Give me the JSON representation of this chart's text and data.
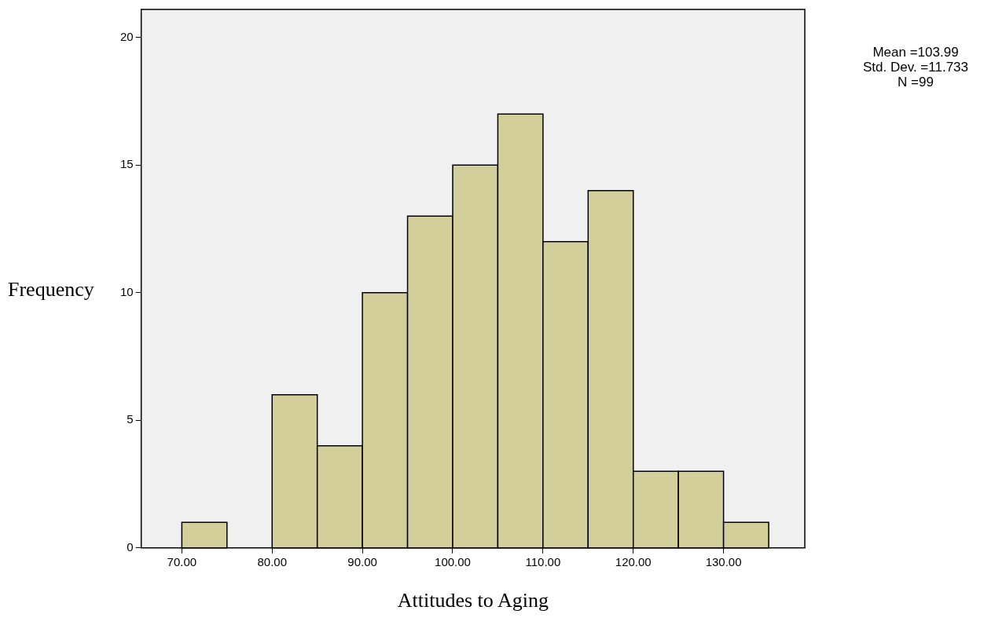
{
  "chart_data": {
    "type": "histogram",
    "xlabel": "Attitudes to Aging",
    "ylabel": "Frequency",
    "bins": [
      70,
      75,
      80,
      85,
      90,
      95,
      100,
      105,
      110,
      115,
      120,
      125,
      130,
      135
    ],
    "values": [
      1,
      0,
      6,
      4,
      10,
      13,
      15,
      17,
      12,
      14,
      3,
      3,
      1
    ],
    "color": "#d3cf9b",
    "xlim": [
      65.5,
      139
    ],
    "ylim": [
      0,
      21.1
    ],
    "xticks": [
      {
        "value": 70,
        "label": "70.00"
      },
      {
        "value": 80,
        "label": "80.00"
      },
      {
        "value": 90,
        "label": "90.00"
      },
      {
        "value": 100,
        "label": "100.00"
      },
      {
        "value": 110,
        "label": "110.00"
      },
      {
        "value": 120,
        "label": "120.00"
      },
      {
        "value": 130,
        "label": "130.00"
      }
    ],
    "yticks": [
      0,
      5,
      10,
      15,
      20
    ],
    "legend": false,
    "annotations": [
      "Mean =103.99",
      "Std. Dev. =11.733",
      "N =99"
    ]
  }
}
